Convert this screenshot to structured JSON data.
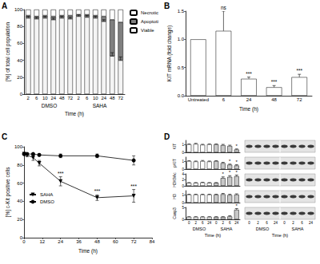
{
  "chart_data": [
    {
      "panel": "A",
      "type": "bar",
      "stacked": true,
      "categories": [
        "2",
        "6",
        "10",
        "24",
        "48",
        "72",
        "2",
        "6",
        "10",
        "24",
        "48",
        "72"
      ],
      "x_groups": [
        "DMSO",
        "SAHA"
      ],
      "xlabel": "Time (h)",
      "ylabel": "[%] of total cell population",
      "ylim": [
        0,
        100
      ],
      "yticks": [
        0,
        20,
        40,
        60,
        80,
        100
      ],
      "grid": false,
      "legend": "right",
      "series": [
        {
          "name": "Viable",
          "color": "#f4f4f4",
          "values": [
            90,
            89,
            90,
            88,
            90,
            89,
            92,
            91,
            90,
            86,
            45,
            40
          ],
          "errors": [
            2,
            2,
            2,
            2,
            2,
            2,
            2,
            2,
            2,
            2,
            4,
            4
          ]
        },
        {
          "name": "Apoptoti",
          "color": "#7f7f7f",
          "values": [
            3,
            3,
            3,
            4,
            3,
            4,
            2,
            3,
            3,
            6,
            43,
            45
          ]
        },
        {
          "name": "Necrotic",
          "color": "#ffffff",
          "values": [
            7,
            8,
            7,
            8,
            7,
            7,
            6,
            6,
            7,
            8,
            12,
            15
          ]
        }
      ]
    },
    {
      "panel": "B",
      "type": "bar",
      "categories": [
        "Untreated",
        "6",
        "24",
        "48",
        "72"
      ],
      "values": [
        1,
        1.15,
        0.3,
        0.15,
        0.33
      ],
      "errors": [
        null,
        0.35,
        0.03,
        0.03,
        0.05
      ],
      "annotations": [
        null,
        "ns",
        "***",
        "***",
        "***"
      ],
      "color": "#ffffff",
      "xlabel": "Time (h)",
      "ylabel": "KIT mRNA (fold change)",
      "ylim": [
        0,
        1.5
      ],
      "yticks": [
        {
          "value": 0,
          "label": "0.0"
        },
        {
          "value": 0.5,
          "label": "0.5"
        },
        {
          "value": 1,
          "label": "1.0"
        },
        {
          "value": 1.5,
          "label": "1.5"
        }
      ],
      "grid": false
    },
    {
      "panel": "C",
      "type": "line",
      "x": [
        0,
        2,
        6,
        10,
        24,
        48,
        72
      ],
      "xlim": [
        0,
        84
      ],
      "xticks": [
        0,
        12,
        24,
        36,
        48,
        60,
        72,
        84
      ],
      "ylim": [
        0,
        100
      ],
      "yticks": [
        0,
        20,
        40,
        60,
        80,
        100
      ],
      "xlabel": "Time (h)",
      "ylabel": "[%] c-Kit positive cells",
      "legend": "upper left",
      "grid": false,
      "series": [
        {
          "name": "SAHA",
          "color": "#000000",
          "marker": "triangle-down",
          "values": [
            92,
            91,
            88,
            82,
            62,
            44,
            46
          ],
          "errors": [
            2,
            2,
            3,
            3,
            5,
            3,
            7
          ],
          "annotations": [
            null,
            null,
            null,
            null,
            "***",
            "***",
            "***"
          ]
        },
        {
          "name": "DMSO",
          "color": "#000000",
          "marker": "circle",
          "values": [
            92,
            92,
            92,
            91,
            90,
            90,
            85
          ],
          "errors": [
            1,
            1,
            1,
            1,
            2,
            2,
            5
          ]
        }
      ]
    },
    {
      "panel": "D",
      "type": "bar",
      "ylabel": "KIT",
      "categories": [
        "0",
        "2",
        "6",
        "24",
        "0",
        "2",
        "6",
        "24"
      ],
      "values": [
        1,
        1.05,
        0.95,
        1,
        1,
        0.9,
        0.8,
        0.35
      ],
      "errors": [
        0.05,
        0.08,
        0.06,
        0.05,
        0.05,
        0.1,
        0.1,
        0.08
      ],
      "annotations": [
        null,
        null,
        null,
        null,
        null,
        null,
        null,
        "*"
      ],
      "colors": [
        "#ffffff",
        "#ffffff",
        "#ffffff",
        "#ffffff",
        "#c8c8c8",
        "#c8c8c8",
        "#c8c8c8",
        "#c8c8c8"
      ],
      "ylim": [
        0,
        1.5
      ],
      "yticks": [
        0,
        1
      ],
      "grid": false,
      "tick_labels": "y"
    },
    {
      "type": "bar",
      "ylabel": "pKIT",
      "categories": [
        "0",
        "2",
        "6",
        "24",
        "0",
        "2",
        "6",
        "24"
      ],
      "values": [
        1,
        0.95,
        1,
        0.95,
        1,
        0.75,
        0.55,
        0.45
      ],
      "errors": [
        0.05,
        0.06,
        0.08,
        0.06,
        0.05,
        0.1,
        0.08,
        0.1
      ],
      "annotations": [
        null,
        null,
        null,
        null,
        null,
        null,
        "*",
        "*"
      ],
      "colors": [
        "#ffffff",
        "#ffffff",
        "#ffffff",
        "#ffffff",
        "#c8c8c8",
        "#c8c8c8",
        "#c8c8c8",
        "#c8c8c8"
      ],
      "ylim": [
        0,
        1.5
      ],
      "yticks": [
        0,
        1
      ],
      "grid": false,
      "tick_labels": "y"
    },
    {
      "type": "bar",
      "ylabel": "H3K9Ac",
      "categories": [
        "0",
        "2",
        "6",
        "24",
        "0",
        "2",
        "6",
        "24"
      ],
      "values": [
        1,
        1,
        1.1,
        1,
        1,
        2.6,
        3.0,
        3.2
      ],
      "errors": [
        0.1,
        0.1,
        0.1,
        0.1,
        0.1,
        0.4,
        0.4,
        0.4
      ],
      "annotations": [
        null,
        null,
        null,
        null,
        null,
        "*",
        "*",
        "*"
      ],
      "colors": [
        "#ffffff",
        "#ffffff",
        "#ffffff",
        "#ffffff",
        "#c8c8c8",
        "#c8c8c8",
        "#c8c8c8",
        "#c8c8c8"
      ],
      "ylim": [
        0,
        4
      ],
      "yticks": [
        0,
        2,
        4
      ],
      "grid": false,
      "tick_labels": "y"
    },
    {
      "type": "bar",
      "ylabel": "H3",
      "categories": [
        "0",
        "2",
        "6",
        "24",
        "0",
        "2",
        "6",
        "24"
      ],
      "values": [
        1,
        1,
        1,
        1,
        1,
        1.05,
        0.95,
        1
      ],
      "errors": [
        0.05,
        0.05,
        0.05,
        0.05,
        0.05,
        0.1,
        0.1,
        0.1
      ],
      "colors": [
        "#ffffff",
        "#ffffff",
        "#ffffff",
        "#ffffff",
        "#c8c8c8",
        "#c8c8c8",
        "#c8c8c8",
        "#c8c8c8"
      ],
      "ylim": [
        0,
        1.5
      ],
      "yticks": [
        0,
        1
      ],
      "grid": false,
      "tick_labels": "y"
    },
    {
      "type": "bar",
      "ylabel": "Casp3",
      "categories": [
        "0",
        "2",
        "6",
        "24",
        "0",
        "2",
        "6",
        "24"
      ],
      "values": [
        1,
        1,
        1,
        1,
        1,
        1,
        1.2,
        4
      ],
      "errors": [
        0.1,
        0.1,
        0.1,
        0.1,
        0.1,
        0.1,
        0.3,
        0.5
      ],
      "annotations": [
        null,
        null,
        null,
        null,
        null,
        null,
        null,
        "*"
      ],
      "colors": [
        "#ffffff",
        "#ffffff",
        "#ffffff",
        "#ffffff",
        "#c8c8c8",
        "#c8c8c8",
        "#c8c8c8",
        "#c8c8c8"
      ],
      "x_groups": [
        "DMSO",
        "SAHA"
      ],
      "xlabel": "Time (h)",
      "ylim": [
        0,
        5
      ],
      "yticks": [
        0,
        5
      ],
      "grid": false
    }
  ]
}
